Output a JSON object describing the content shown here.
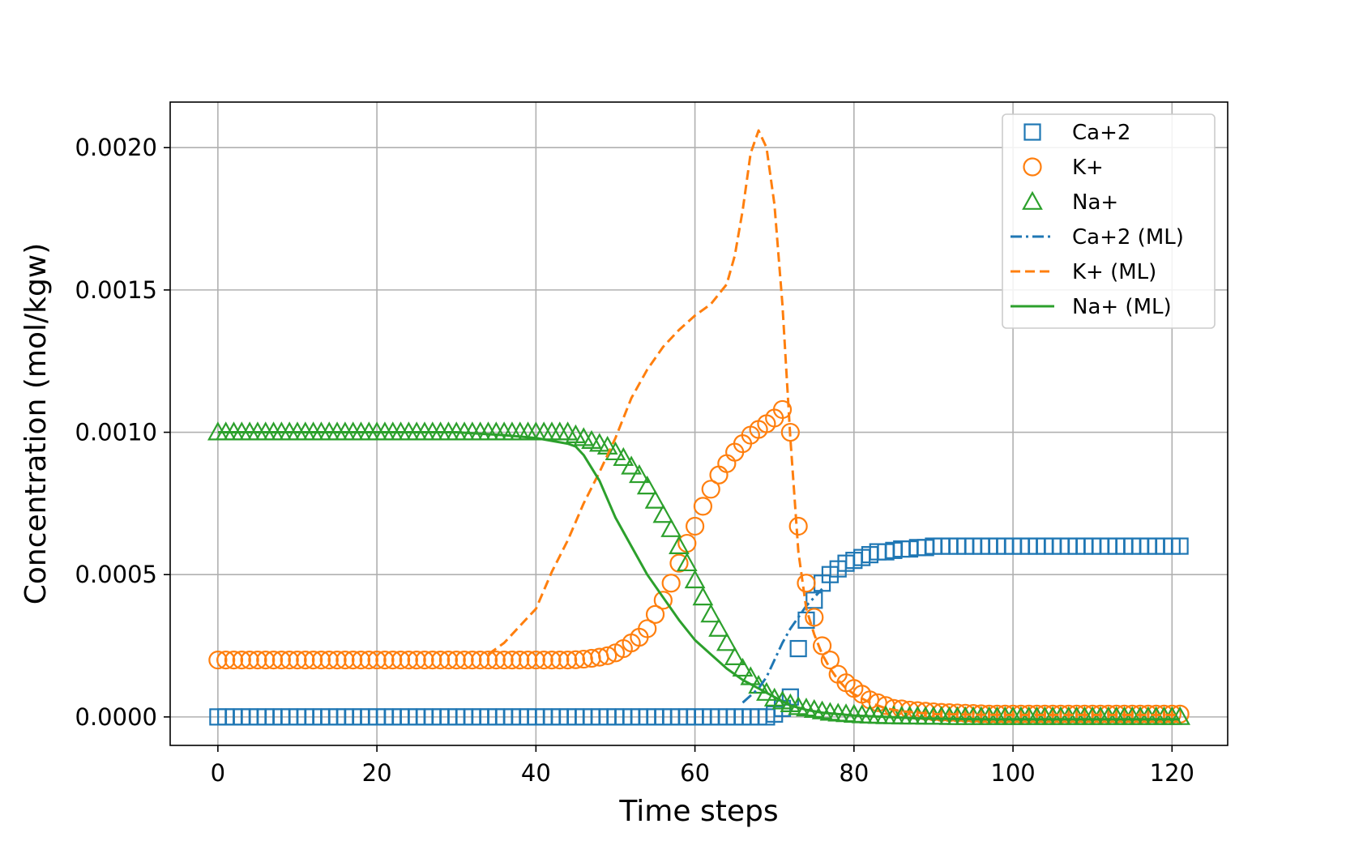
{
  "chart_data": {
    "type": "line",
    "xlabel": "Time steps",
    "ylabel": "Concentration (mol/kgw)",
    "xlim": [
      -6,
      127
    ],
    "ylim": [
      -0.0001,
      0.00216
    ],
    "xticks": [
      0,
      20,
      40,
      60,
      80,
      100,
      120
    ],
    "yticks": [
      0.0,
      0.0005,
      0.001,
      0.0015,
      0.002
    ],
    "xtick_labels": [
      "0",
      "20",
      "40",
      "60",
      "80",
      "100",
      "120"
    ],
    "ytick_labels": [
      "0.0000",
      "0.0005",
      "0.0010",
      "0.0015",
      "0.0020"
    ],
    "grid": true,
    "legend_position": "top-right",
    "colors": {
      "blue": "#1f77b4",
      "orange": "#ff7f0e",
      "green": "#2ca02c"
    },
    "series": [
      {
        "name": "Ca+2",
        "style": "marker",
        "marker": "square",
        "color": "#1f77b4",
        "x": [
          0,
          1,
          2,
          3,
          4,
          5,
          6,
          7,
          8,
          9,
          10,
          11,
          12,
          13,
          14,
          15,
          16,
          17,
          18,
          19,
          20,
          21,
          22,
          23,
          24,
          25,
          26,
          27,
          28,
          29,
          30,
          31,
          32,
          33,
          34,
          35,
          36,
          37,
          38,
          39,
          40,
          41,
          42,
          43,
          44,
          45,
          46,
          47,
          48,
          49,
          50,
          51,
          52,
          53,
          54,
          55,
          56,
          57,
          58,
          59,
          60,
          61,
          62,
          63,
          64,
          65,
          66,
          67,
          68,
          69,
          70,
          71,
          72,
          73,
          74,
          75,
          76,
          77,
          78,
          79,
          80,
          81,
          82,
          83,
          84,
          85,
          86,
          87,
          88,
          89,
          90,
          91,
          92,
          93,
          94,
          95,
          96,
          97,
          98,
          99,
          100,
          101,
          102,
          103,
          104,
          105,
          106,
          107,
          108,
          109,
          110,
          111,
          112,
          113,
          114,
          115,
          116,
          117,
          118,
          119,
          120,
          121
        ],
        "y": [
          0,
          0,
          0,
          0,
          0,
          0,
          0,
          0,
          0,
          0,
          0,
          0,
          0,
          0,
          0,
          0,
          0,
          0,
          0,
          0,
          0,
          0,
          0,
          0,
          0,
          0,
          0,
          0,
          0,
          0,
          0,
          0,
          0,
          0,
          0,
          0,
          0,
          0,
          0,
          0,
          0,
          0,
          0,
          0,
          0,
          0,
          0,
          0,
          0,
          0,
          0,
          0,
          0,
          0,
          0,
          0,
          0,
          0,
          0,
          0,
          0,
          0,
          0,
          0,
          0,
          0,
          0,
          0,
          0,
          0,
          1e-05,
          3e-05,
          7e-05,
          0.00024,
          0.00034,
          0.00041,
          0.00047,
          0.0005,
          0.00052,
          0.00054,
          0.00055,
          0.00056,
          0.00057,
          0.00058,
          0.00058,
          0.000585,
          0.00059,
          0.00059,
          0.000595,
          0.000595,
          0.0006,
          0.0006,
          0.0006,
          0.0006,
          0.0006,
          0.0006,
          0.0006,
          0.0006,
          0.0006,
          0.0006,
          0.0006,
          0.0006,
          0.0006,
          0.0006,
          0.0006,
          0.0006,
          0.0006,
          0.0006,
          0.0006,
          0.0006,
          0.0006,
          0.0006,
          0.0006,
          0.0006,
          0.0006,
          0.0006,
          0.0006,
          0.0006,
          0.0006,
          0.0006,
          0.0006,
          0.0006
        ]
      },
      {
        "name": "K+",
        "style": "marker",
        "marker": "circle",
        "color": "#ff7f0e",
        "x": [
          0,
          1,
          2,
          3,
          4,
          5,
          6,
          7,
          8,
          9,
          10,
          11,
          12,
          13,
          14,
          15,
          16,
          17,
          18,
          19,
          20,
          21,
          22,
          23,
          24,
          25,
          26,
          27,
          28,
          29,
          30,
          31,
          32,
          33,
          34,
          35,
          36,
          37,
          38,
          39,
          40,
          41,
          42,
          43,
          44,
          45,
          46,
          47,
          48,
          49,
          50,
          51,
          52,
          53,
          54,
          55,
          56,
          57,
          58,
          59,
          60,
          61,
          62,
          63,
          64,
          65,
          66,
          67,
          68,
          69,
          70,
          71,
          72,
          73,
          74,
          75,
          76,
          77,
          78,
          79,
          80,
          81,
          82,
          83,
          84,
          85,
          86,
          87,
          88,
          89,
          90,
          91,
          92,
          93,
          94,
          95,
          96,
          97,
          98,
          99,
          100,
          101,
          102,
          103,
          104,
          105,
          106,
          107,
          108,
          109,
          110,
          111,
          112,
          113,
          114,
          115,
          116,
          117,
          118,
          119,
          120,
          121
        ],
        "y": [
          0.0002,
          0.0002,
          0.0002,
          0.0002,
          0.0002,
          0.0002,
          0.0002,
          0.0002,
          0.0002,
          0.0002,
          0.0002,
          0.0002,
          0.0002,
          0.0002,
          0.0002,
          0.0002,
          0.0002,
          0.0002,
          0.0002,
          0.0002,
          0.0002,
          0.0002,
          0.0002,
          0.0002,
          0.0002,
          0.0002,
          0.0002,
          0.0002,
          0.0002,
          0.0002,
          0.0002,
          0.0002,
          0.0002,
          0.0002,
          0.0002,
          0.0002,
          0.0002,
          0.0002,
          0.0002,
          0.0002,
          0.0002,
          0.0002,
          0.0002,
          0.0002,
          0.0002,
          0.000201,
          0.000203,
          0.000206,
          0.00021,
          0.000215,
          0.000225,
          0.00024,
          0.00026,
          0.00028,
          0.00031,
          0.00036,
          0.00041,
          0.00047,
          0.00054,
          0.00061,
          0.00067,
          0.00074,
          0.0008,
          0.00085,
          0.00089,
          0.00093,
          0.00096,
          0.00099,
          0.00101,
          0.00103,
          0.00105,
          0.00108,
          0.001,
          0.00067,
          0.00047,
          0.00035,
          0.00025,
          0.0002,
          0.00015,
          0.00012,
          0.0001,
          8e-05,
          6e-05,
          5e-05,
          4e-05,
          3e-05,
          2.8e-05,
          2.4e-05,
          2.2e-05,
          2e-05,
          1.8e-05,
          1.6e-05,
          1.5e-05,
          1.4e-05,
          1.3e-05,
          1.2e-05,
          1.1e-05,
          1e-05,
          1e-05,
          1e-05,
          1e-05,
          1e-05,
          1e-05,
          1e-05,
          1e-05,
          1e-05,
          1e-05,
          1e-05,
          1e-05,
          1e-05,
          1e-05,
          1e-05,
          1e-05,
          1e-05,
          1e-05,
          1e-05,
          1e-05,
          1e-05,
          1e-05,
          1e-05,
          1e-05,
          1e-05
        ]
      },
      {
        "name": "Na+",
        "style": "marker",
        "marker": "triangle",
        "color": "#2ca02c",
        "x": [
          0,
          1,
          2,
          3,
          4,
          5,
          6,
          7,
          8,
          9,
          10,
          11,
          12,
          13,
          14,
          15,
          16,
          17,
          18,
          19,
          20,
          21,
          22,
          23,
          24,
          25,
          26,
          27,
          28,
          29,
          30,
          31,
          32,
          33,
          34,
          35,
          36,
          37,
          38,
          39,
          40,
          41,
          42,
          43,
          44,
          45,
          46,
          47,
          48,
          49,
          50,
          51,
          52,
          53,
          54,
          55,
          56,
          57,
          58,
          59,
          60,
          61,
          62,
          63,
          64,
          65,
          66,
          67,
          68,
          69,
          70,
          71,
          72,
          73,
          74,
          75,
          76,
          77,
          78,
          79,
          80,
          81,
          82,
          83,
          84,
          85,
          86,
          87,
          88,
          89,
          90,
          91,
          92,
          93,
          94,
          95,
          96,
          97,
          98,
          99,
          100,
          101,
          102,
          103,
          104,
          105,
          106,
          107,
          108,
          109,
          110,
          111,
          112,
          113,
          114,
          115,
          116,
          117,
          118,
          119,
          120,
          121
        ],
        "y": [
          0.001,
          0.001,
          0.001,
          0.001,
          0.001,
          0.001,
          0.001,
          0.001,
          0.001,
          0.001,
          0.001,
          0.001,
          0.001,
          0.001,
          0.001,
          0.001,
          0.001,
          0.001,
          0.001,
          0.001,
          0.001,
          0.001,
          0.001,
          0.001,
          0.001,
          0.001,
          0.001,
          0.001,
          0.001,
          0.001,
          0.001,
          0.001,
          0.001,
          0.001,
          0.001,
          0.001,
          0.001,
          0.001,
          0.001,
          0.001,
          0.001,
          0.001,
          0.001,
          0.001,
          0.001,
          0.00099,
          0.00098,
          0.00097,
          0.00096,
          0.00095,
          0.00093,
          0.00091,
          0.00088,
          0.00085,
          0.00081,
          0.00076,
          0.00071,
          0.00066,
          0.0006,
          0.00054,
          0.00048,
          0.00042,
          0.00036,
          0.00031,
          0.00026,
          0.00021,
          0.00017,
          0.00014,
          0.00011,
          8.5e-05,
          6.5e-05,
          5.5e-05,
          4.5e-05,
          3.5e-05,
          3e-05,
          2.5e-05,
          2e-05,
          1.5e-05,
          1.2e-05,
          1e-05,
          8e-06,
          6e-06,
          5e-06,
          4e-06,
          3e-06,
          3e-06,
          2e-06,
          2e-06,
          2e-06,
          1e-06,
          1e-06,
          1e-06,
          0,
          0,
          0,
          0,
          0,
          0,
          0,
          0,
          0,
          0,
          0,
          0,
          0,
          0,
          0,
          0,
          0,
          0,
          0,
          0,
          0,
          0,
          0,
          0,
          0,
          0,
          0,
          0,
          0,
          0
        ]
      },
      {
        "name": "Ca+2 (ML)",
        "style": "dashdot",
        "color": "#1f77b4",
        "x": [
          66,
          68,
          69,
          70,
          71,
          72,
          73,
          74,
          75,
          76
        ],
        "y": [
          5e-05,
          0.0001,
          0.00014,
          0.0002,
          0.00026,
          0.00031,
          0.00035,
          0.00039,
          0.00042,
          0.00045
        ]
      },
      {
        "name": "K+ (ML)",
        "style": "dashed",
        "color": "#ff7f0e",
        "x": [
          34,
          36,
          38,
          40,
          42,
          44,
          46,
          48,
          50,
          52,
          54,
          56,
          58,
          60,
          62,
          64,
          65,
          66,
          67,
          68,
          69,
          70,
          71,
          72,
          73,
          74,
          75,
          76,
          77,
          78,
          79,
          80,
          82,
          84,
          86,
          88,
          90,
          95,
          100,
          110,
          121
        ],
        "y": [
          0.00022,
          0.00026,
          0.00032,
          0.00038,
          0.00051,
          0.00062,
          0.00075,
          0.00086,
          0.00098,
          0.00112,
          0.00122,
          0.0013,
          0.00136,
          0.00141,
          0.00145,
          0.00152,
          0.00162,
          0.00178,
          0.00198,
          0.00206,
          0.002,
          0.0018,
          0.00145,
          0.00098,
          0.00058,
          0.00038,
          0.00029,
          0.00022,
          0.00017,
          0.00013,
          0.0001,
          8e-05,
          5e-05,
          3e-05,
          2e-05,
          1.5e-05,
          1e-05,
          8e-06,
          7e-06,
          7e-06,
          7e-06
        ]
      },
      {
        "name": "Na+ (ML)",
        "style": "solid",
        "color": "#2ca02c",
        "x": [
          0,
          10,
          20,
          30,
          36,
          40,
          42,
          44,
          45,
          46,
          48,
          50,
          52,
          54,
          56,
          58,
          60,
          62,
          64,
          66,
          68,
          70,
          72,
          74,
          76,
          78,
          80,
          84,
          88,
          92,
          96,
          100,
          110,
          121
        ],
        "y": [
          0.001,
          0.001,
          0.001,
          0.001,
          0.00099,
          0.00098,
          0.00097,
          0.00096,
          0.00095,
          0.00092,
          0.00083,
          0.0007,
          0.0006,
          0.0005,
          0.00042,
          0.00034,
          0.00027,
          0.00022,
          0.00017,
          0.00013,
          0.0001,
          7e-05,
          4e-05,
          2.5e-05,
          1.5e-05,
          1e-05,
          5e-06,
          0,
          -5e-06,
          -7e-06,
          -8e-06,
          -8e-06,
          -8e-06,
          -8e-06
        ]
      }
    ]
  }
}
